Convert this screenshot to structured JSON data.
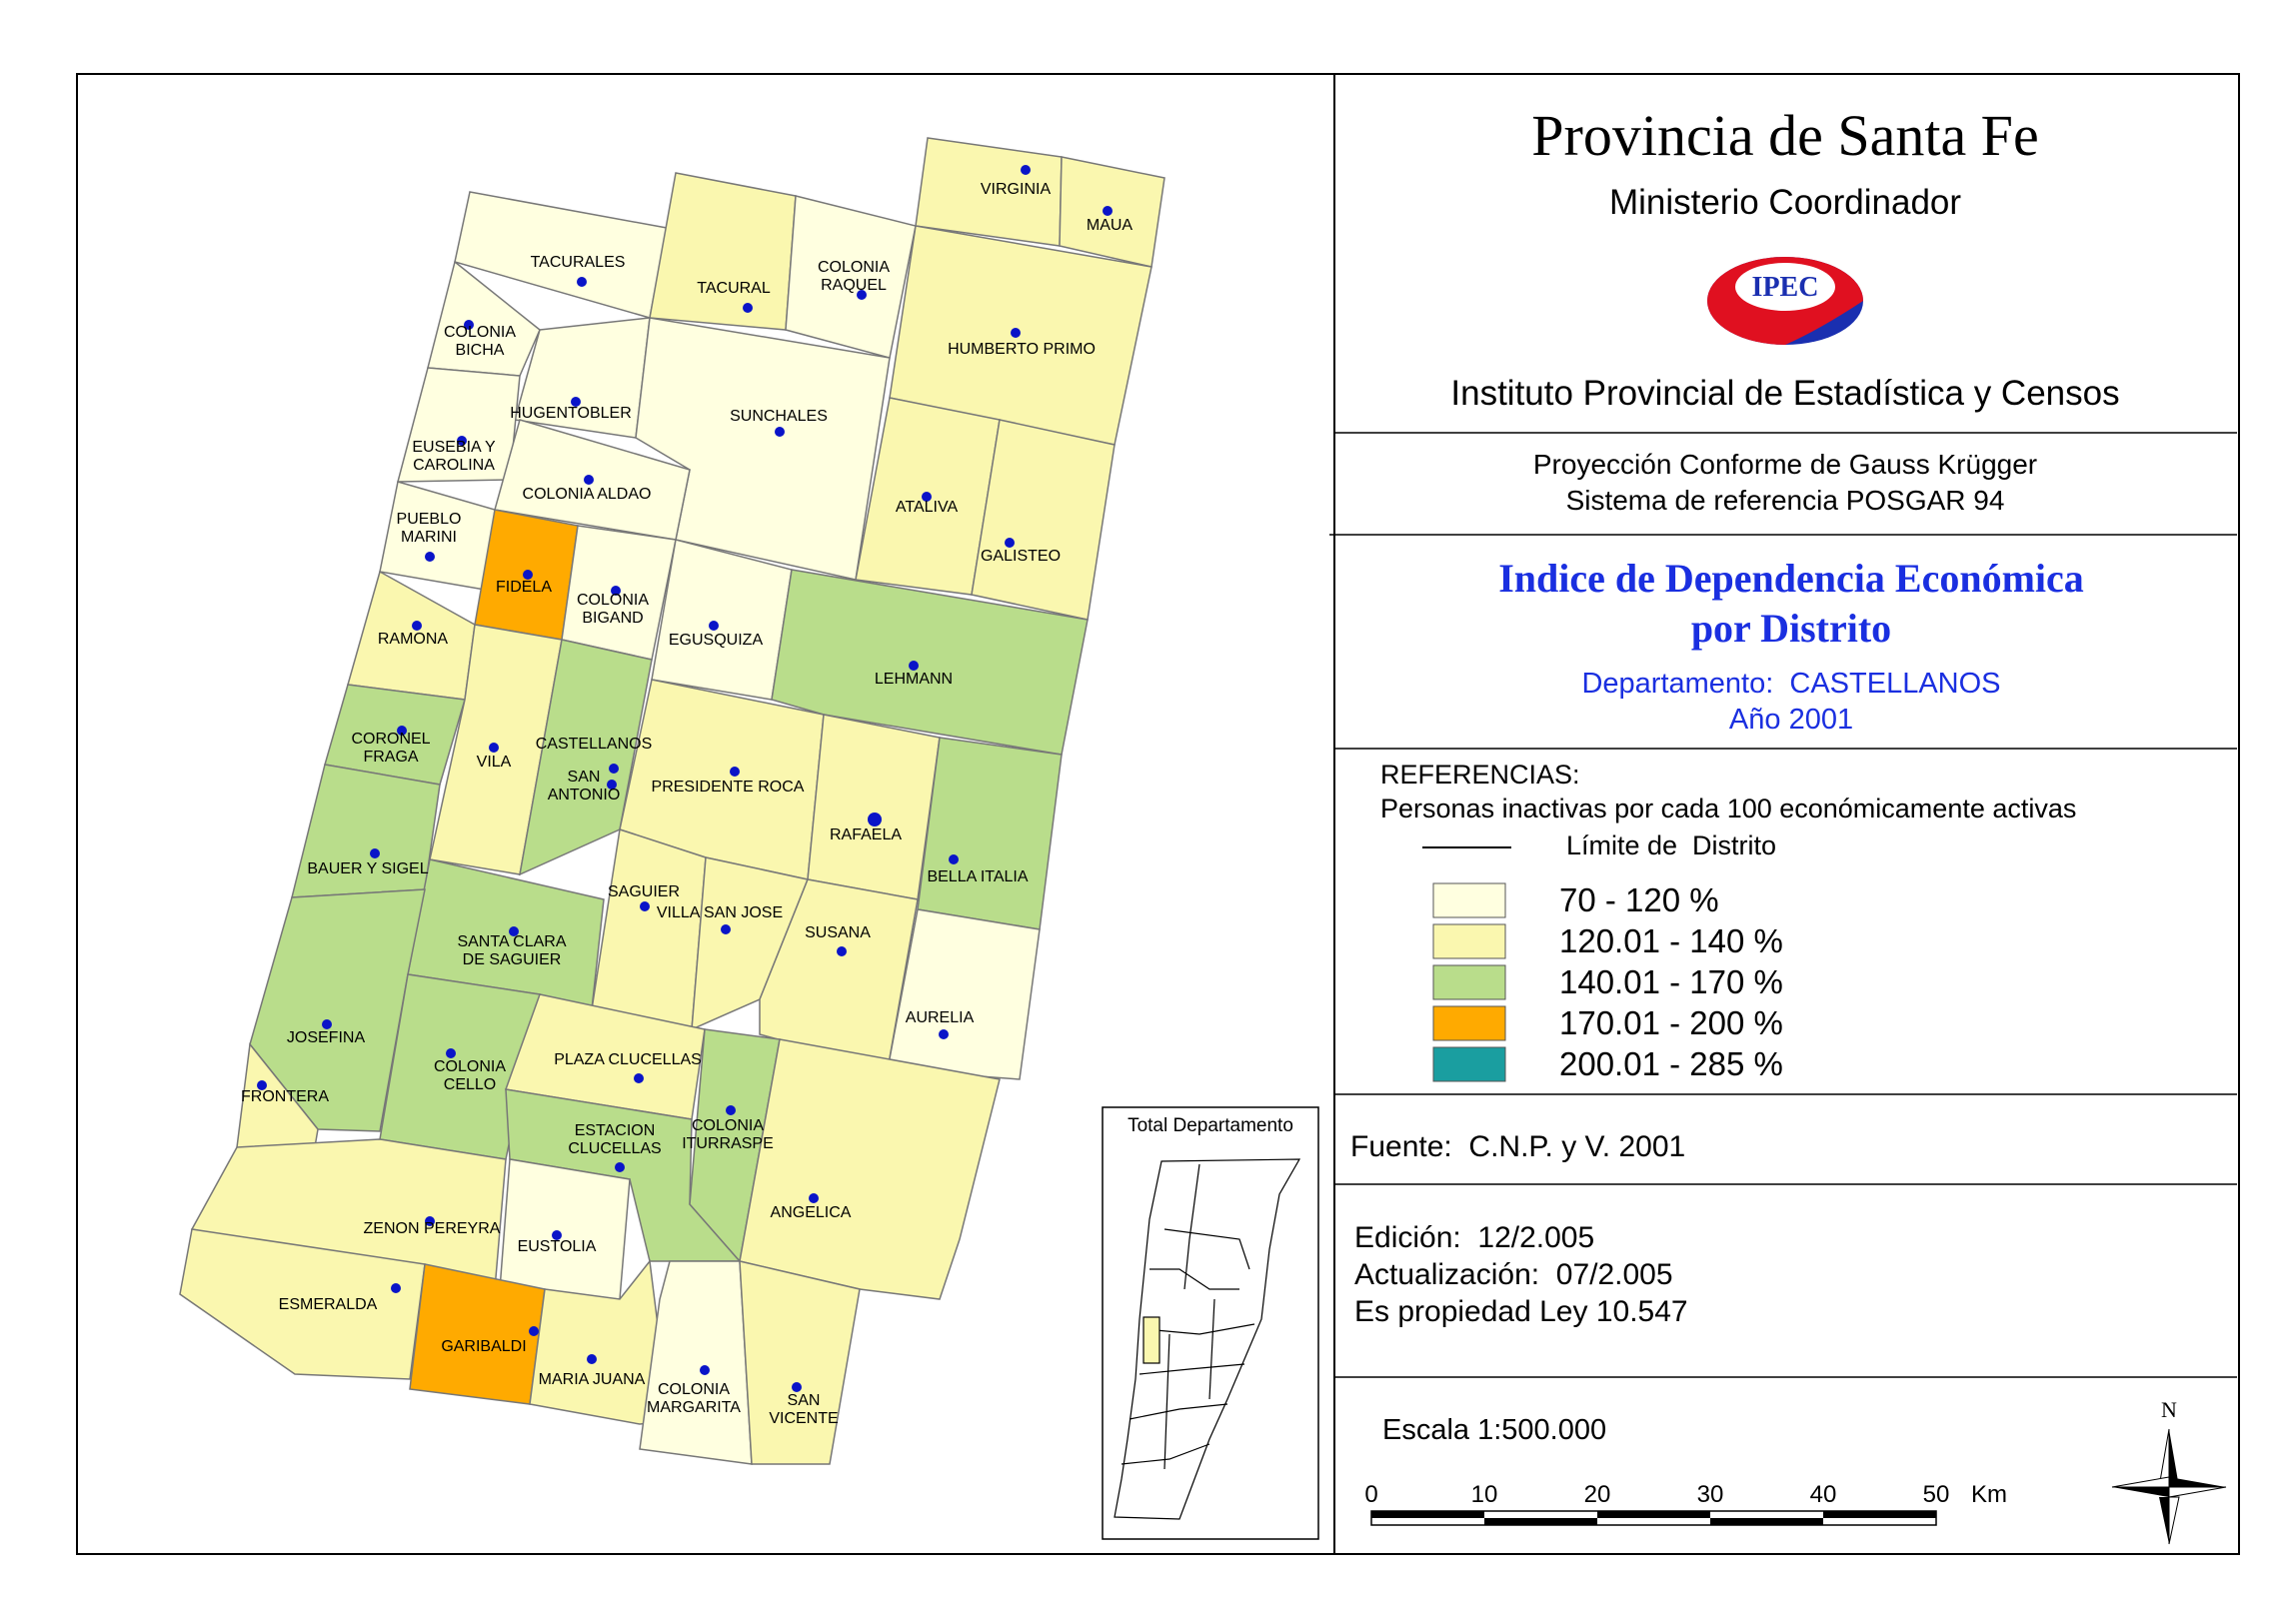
{
  "header": {
    "title": "Provincia de Santa Fe",
    "ministry": "Ministerio Coordinador",
    "logo_text": "IPEC",
    "institute": "Instituto Provincial de Estadística y Censos"
  },
  "projection": {
    "line1": "Proyección Conforme de Gauss Krügger",
    "line2": "Sistema de referencia POSGAR 94"
  },
  "map_title": {
    "line1": "Indice de Dependencia Económica",
    "line2": "por Distrito",
    "department": "Departamento:  CASTELLANOS",
    "year": "Año 2001"
  },
  "legend": {
    "heading": "REFERENCIAS:",
    "subtitle": "Personas inactivas por cada 100 económicamente activas",
    "boundary_label": "Límite de  Distrito",
    "classes": [
      {
        "label": "70 - 120 %",
        "color": "#FFFFE0"
      },
      {
        "label": "120.01 - 140 %",
        "color": "#FAF7AF"
      },
      {
        "label": "140.01 - 170 %",
        "color": "#B9DD8B"
      },
      {
        "label": "170.01 - 200 %",
        "color": "#FFAA00"
      },
      {
        "label": "200.01 - 285 %",
        "color": "#1A9EA0"
      }
    ]
  },
  "source": "Fuente:  C.N.P. y V. 2001",
  "edition": {
    "line1": "Edición:  12/2.005",
    "line2": "Actualización:  07/2.005",
    "line3": "Es propiedad Ley 10.547"
  },
  "scale": {
    "label": "Escala 1:500.000",
    "ticks": [
      "0",
      "10",
      "20",
      "30",
      "40",
      "50"
    ],
    "unit": "Km"
  },
  "north_label": "N",
  "inset_title": "Total Departamento",
  "districts": [
    {
      "label": [
        "VIRGINIA"
      ],
      "class": 2
    },
    {
      "label": [
        "MAUA"
      ],
      "class": 2
    },
    {
      "label": [
        "TACURALES"
      ],
      "class": 1
    },
    {
      "label": [
        "TACURAL"
      ],
      "class": 2
    },
    {
      "label": [
        "COLONIA",
        "RAQUEL"
      ],
      "class": 1
    },
    {
      "label": [
        "HUMBERTO PRIMO"
      ],
      "class": 2
    },
    {
      "label": [
        "COLONIA",
        "BICHA"
      ],
      "class": 1
    },
    {
      "label": [
        "HUGENTOBLER"
      ],
      "class": 1
    },
    {
      "label": [
        "SUNCHALES"
      ],
      "class": 1
    },
    {
      "label": [
        "EUSEBIA Y",
        "CAROLINA"
      ],
      "class": 1
    },
    {
      "label": [
        "COLONIA ALDAO"
      ],
      "class": 1
    },
    {
      "label": [
        "ATALIVA"
      ],
      "class": 2
    },
    {
      "label": [
        "GALISTEO"
      ],
      "class": 2
    },
    {
      "label": [
        "PUEBLO",
        "MARINI"
      ],
      "class": 1
    },
    {
      "label": [
        "FIDELA"
      ],
      "class": 4
    },
    {
      "label": [
        "COLONIA",
        "BIGAND"
      ],
      "class": 1
    },
    {
      "label": [
        "EGUSQUIZA"
      ],
      "class": 1
    },
    {
      "label": [
        "LEHMANN"
      ],
      "class": 3
    },
    {
      "label": [
        "RAMONA"
      ],
      "class": 2
    },
    {
      "label": [
        "CORONEL",
        "FRAGA"
      ],
      "class": 3
    },
    {
      "label": [
        "VILA"
      ],
      "class": 2
    },
    {
      "label": [
        "CASTELLANOS"
      ],
      "class": 3
    },
    {
      "label": [
        "SAN",
        "ANTONIO"
      ],
      "class": 3
    },
    {
      "label": [
        "PRESIDENTE ROCA"
      ],
      "class": 2
    },
    {
      "label": [
        "RAFAELA"
      ],
      "class": 2
    },
    {
      "label": [
        "BELLA ITALIA"
      ],
      "class": 3
    },
    {
      "label": [
        "BAUER Y SIGEL"
      ],
      "class": 3
    },
    {
      "label": [
        "SAGUIER"
      ],
      "class": 2
    },
    {
      "label": [
        "VILLA SAN JOSE"
      ],
      "class": 2
    },
    {
      "label": [
        "SUSANA"
      ],
      "class": 2
    },
    {
      "label": [
        "SANTA CLARA",
        "DE SAGUIER"
      ],
      "class": 3
    },
    {
      "label": [
        "AURELIA"
      ],
      "class": 1
    },
    {
      "label": [
        "JOSEFINA"
      ],
      "class": 3
    },
    {
      "label": [
        "FRONTERA"
      ],
      "class": 2
    },
    {
      "label": [
        "COLONIA",
        "CELLO"
      ],
      "class": 3
    },
    {
      "label": [
        "PLAZA CLUCELLAS"
      ],
      "class": 2
    },
    {
      "label": [
        "ESTACION",
        "CLUCELLAS"
      ],
      "class": 3
    },
    {
      "label": [
        "COLONIA",
        "ITURRASPE"
      ],
      "class": 3
    },
    {
      "label": [
        "ANGELICA"
      ],
      "class": 2
    },
    {
      "label": [
        "ZENON PEREYRA"
      ],
      "class": 2
    },
    {
      "label": [
        "EUSTOLIA"
      ],
      "class": 1
    },
    {
      "label": [
        "ESMERALDA"
      ],
      "class": 2
    },
    {
      "label": [
        "GARIBALDI"
      ],
      "class": 4
    },
    {
      "label": [
        "MARIA JUANA"
      ],
      "class": 2
    },
    {
      "label": [
        "COLONIA",
        "MARGARITA"
      ],
      "class": 1
    },
    {
      "label": [
        "SAN",
        "VICENTE"
      ],
      "class": 2
    }
  ]
}
